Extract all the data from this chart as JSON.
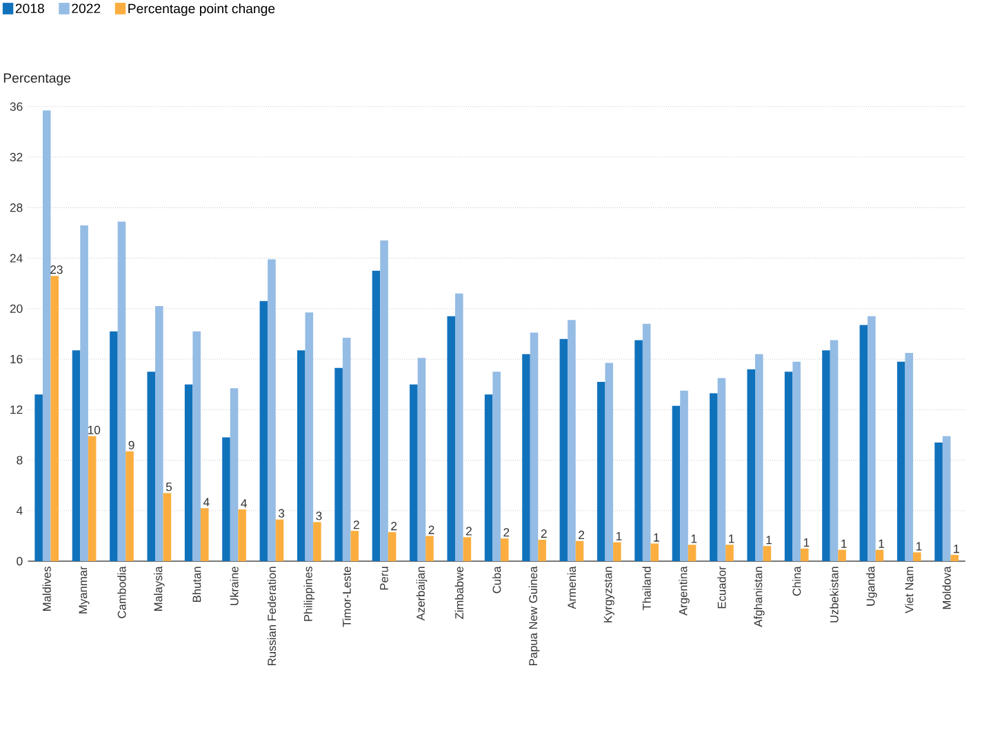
{
  "chart_data": {
    "type": "bar",
    "ylabel": "Percentage",
    "categories": [
      "Maldives",
      "Myanmar",
      "Cambodia",
      "Malaysia",
      "Bhutan",
      "Ukraine",
      "Russian Federation",
      "Philippines",
      "Timor-Leste",
      "Peru",
      "Azerbaijan",
      "Zimbabwe",
      "Cuba",
      "Papua New Guinea",
      "Armenia",
      "Kyrgyzstan",
      "Thailand",
      "Argentina",
      "Ecuador",
      "Afghanistan",
      "China",
      "Uzbekistan",
      "Uganda",
      "Viet Nam",
      "Moldova"
    ],
    "series": [
      {
        "name": "2018",
        "color": "#1172bc",
        "values": [
          13.2,
          16.7,
          18.2,
          15.0,
          14.0,
          9.8,
          20.6,
          16.7,
          15.3,
          23.0,
          14.0,
          19.4,
          13.2,
          16.4,
          17.6,
          14.2,
          17.5,
          12.3,
          13.3,
          15.2,
          15.0,
          16.7,
          18.7,
          15.8,
          9.4
        ]
      },
      {
        "name": "2022",
        "color": "#94bce4",
        "values": [
          35.7,
          26.6,
          26.9,
          20.2,
          18.2,
          13.7,
          23.9,
          19.7,
          17.7,
          25.4,
          16.1,
          21.2,
          15.0,
          18.1,
          19.1,
          15.7,
          18.8,
          13.5,
          14.5,
          16.4,
          15.8,
          17.5,
          19.4,
          16.5,
          9.9
        ]
      },
      {
        "name": "Percentage point change",
        "color": "#fbae3f",
        "values": [
          22.6,
          9.9,
          8.7,
          5.4,
          4.2,
          4.1,
          3.3,
          3.1,
          2.4,
          2.3,
          2.0,
          1.9,
          1.8,
          1.7,
          1.6,
          1.5,
          1.4,
          1.3,
          1.3,
          1.2,
          1.0,
          0.9,
          0.9,
          0.7,
          0.5
        ],
        "value_labels": [
          "23",
          "10",
          "9",
          "5",
          "4",
          "4",
          "3",
          "3",
          "2",
          "2",
          "2",
          "2",
          "2",
          "2",
          "2",
          "1",
          "1",
          "1",
          "1",
          "1",
          "1",
          "1",
          "1",
          "1",
          "1"
        ]
      }
    ],
    "ylim": [
      0,
      36
    ],
    "yticks": [
      0,
      4,
      8,
      12,
      16,
      20,
      24,
      28,
      32,
      36
    ],
    "grid": "y",
    "legend": "top left"
  }
}
